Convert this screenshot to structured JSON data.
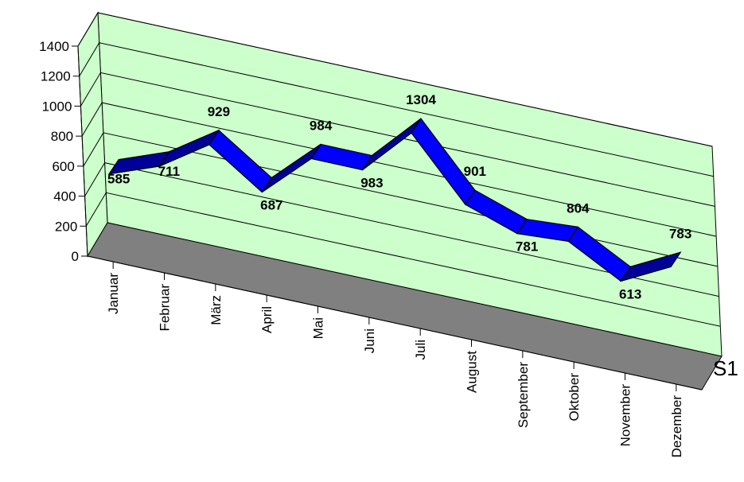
{
  "chart_data": {
    "type": "line",
    "style": "3d-ribbon",
    "categories": [
      "Januar",
      "Februar",
      "März",
      "April",
      "Mai",
      "Juni",
      "Juli",
      "August",
      "September",
      "Oktober",
      "November",
      "Dezember"
    ],
    "series": [
      {
        "name": "S1",
        "values": [
          585,
          711,
          929,
          687,
          984,
          983,
          1304,
          901,
          781,
          804,
          613,
          783
        ]
      }
    ],
    "y_ticks": [
      "0",
      "200",
      "400",
      "600",
      "800",
      "1000",
      "1200",
      "1400"
    ],
    "ylim": [
      0,
      1400
    ],
    "grid": true,
    "colors": {
      "wall": "#ccffcc",
      "floor": "#808080",
      "ribbon_top": "#0000ff",
      "ribbon_side": "#000099"
    }
  }
}
